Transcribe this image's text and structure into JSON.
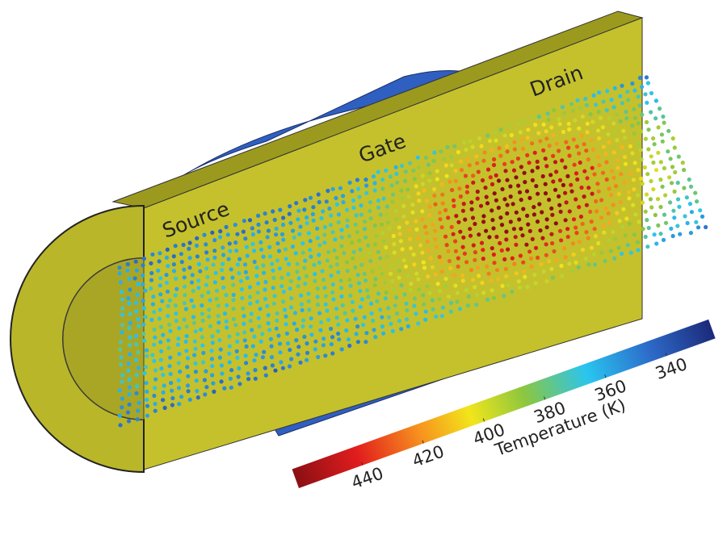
{
  "labels": {
    "source": "Source",
    "gate": "Gate",
    "drain": "Drain"
  },
  "colorbar": {
    "label": "Temperature (K)",
    "range": [
      461,
      324
    ],
    "ticks": [
      440,
      420,
      400,
      380,
      360,
      340
    ]
  }
}
